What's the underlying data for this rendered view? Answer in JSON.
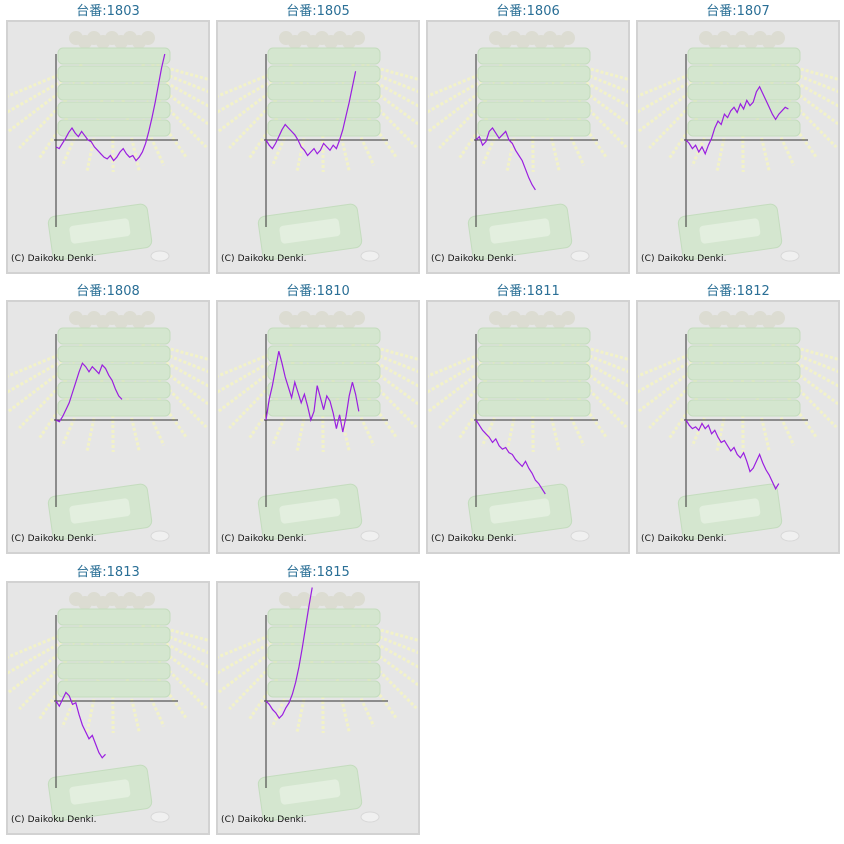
{
  "chart_data": [
    {
      "type": "line",
      "title": "台番:1803",
      "footer": "(C) Daikoku Denki.",
      "series": [
        {
          "values": [
            -8,
            -10,
            -4,
            2,
            9,
            14,
            8,
            4,
            10,
            5,
            0,
            -2,
            -8,
            -12,
            -16,
            -20,
            -22,
            -18,
            -24,
            -20,
            -14,
            -10,
            -16,
            -20,
            -18,
            -24,
            -20,
            -14,
            -4,
            10,
            26,
            44,
            64,
            84,
            100
          ]
        }
      ]
    },
    {
      "type": "line",
      "title": "台番:1805",
      "footer": "(C) Daikoku Denki.",
      "series": [
        {
          "values": [
            0,
            -6,
            -10,
            -4,
            4,
            12,
            18,
            14,
            10,
            6,
            0,
            -8,
            -12,
            -18,
            -14,
            -10,
            -16,
            -12,
            -4,
            -8,
            -12,
            -6,
            -10,
            0,
            12,
            28,
            44,
            62,
            80
          ]
        }
      ]
    },
    {
      "type": "line",
      "title": "台番:1806",
      "footer": "(C) Daikoku Denki.",
      "series": [
        {
          "values": [
            0,
            4,
            -6,
            -2,
            10,
            14,
            8,
            2,
            6,
            10,
            0,
            -4,
            -12,
            -18,
            -24,
            -34,
            -44,
            -52,
            -58
          ]
        }
      ]
    },
    {
      "type": "line",
      "title": "台番:1807",
      "footer": "(C) Daikoku Denki.",
      "series": [
        {
          "values": [
            0,
            -4,
            -10,
            -6,
            -14,
            -8,
            -16,
            -6,
            2,
            14,
            22,
            18,
            30,
            26,
            34,
            38,
            32,
            42,
            36,
            46,
            40,
            44,
            56,
            62,
            54,
            46,
            38,
            30,
            24,
            30,
            34,
            38,
            36
          ]
        }
      ]
    },
    {
      "type": "line",
      "title": "台番:1808",
      "footer": "(C) Daikoku Denki.",
      "series": [
        {
          "values": [
            0,
            -2,
            4,
            12,
            20,
            32,
            44,
            56,
            66,
            62,
            56,
            62,
            58,
            54,
            64,
            60,
            52,
            46,
            36,
            28,
            24
          ]
        }
      ]
    },
    {
      "type": "line",
      "title": "台番:1810",
      "footer": "(C) Daikoku Denki.",
      "series": [
        {
          "values": [
            0,
            24,
            40,
            60,
            80,
            66,
            50,
            38,
            26,
            44,
            32,
            20,
            30,
            16,
            0,
            10,
            40,
            26,
            12,
            28,
            22,
            8,
            -10,
            6,
            -14,
            4,
            28,
            44,
            30,
            10
          ]
        }
      ]
    },
    {
      "type": "line",
      "title": "台番:1811",
      "footer": "(C) Daikoku Denki.",
      "series": [
        {
          "values": [
            0,
            -6,
            -12,
            -16,
            -20,
            -26,
            -22,
            -30,
            -34,
            -32,
            -38,
            -40,
            -46,
            -50,
            -54,
            -48,
            -56,
            -62,
            -70,
            -74,
            -80,
            -86
          ]
        }
      ]
    },
    {
      "type": "line",
      "title": "台番:1812",
      "footer": "(C) Daikoku Denki.",
      "series": [
        {
          "values": [
            0,
            -6,
            -10,
            -8,
            -12,
            -4,
            -10,
            -6,
            -16,
            -12,
            -20,
            -26,
            -24,
            -30,
            -36,
            -32,
            -40,
            -44,
            -38,
            -48,
            -60,
            -56,
            -48,
            -40,
            -50,
            -58,
            -64,
            -72,
            -80,
            -74
          ]
        }
      ]
    },
    {
      "type": "line",
      "title": "台番:1813",
      "footer": "(C) Daikoku Denki.",
      "series": [
        {
          "values": [
            0,
            -6,
            2,
            10,
            6,
            -4,
            -2,
            -16,
            -28,
            -36,
            -44,
            -40,
            -50,
            -60,
            -66,
            -62
          ]
        }
      ]
    },
    {
      "type": "line",
      "title": "台番:1815",
      "footer": "(C) Daikoku Denki.",
      "series": [
        {
          "values": [
            0,
            -4,
            -10,
            -14,
            -20,
            -16,
            -8,
            -2,
            8,
            22,
            40,
            62,
            86,
            110,
            132
          ]
        }
      ]
    }
  ]
}
